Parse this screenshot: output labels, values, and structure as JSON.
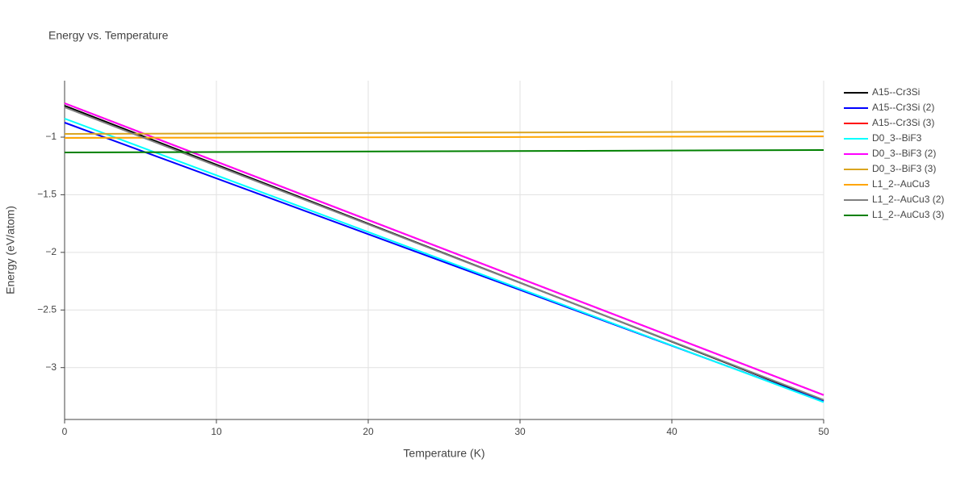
{
  "chart_data": {
    "type": "line",
    "title": "Energy vs. Temperature",
    "x_label": "Temperature (K)",
    "y_label": "Energy (eV/atom)",
    "x": [
      0,
      50
    ],
    "series": [
      {
        "name": "A15--Cr3Si",
        "color": "#000000",
        "values": [
          -0.727,
          -3.287
        ]
      },
      {
        "name": "A15--Cr3Si (2)",
        "color": "#0000ff",
        "values": [
          -0.874,
          -3.294
        ]
      },
      {
        "name": "A15--Cr3Si (3)",
        "color": "#ff0000",
        "values": [
          -0.706,
          -3.238
        ]
      },
      {
        "name": "D0_3--BiF3",
        "color": "#00ffff",
        "values": [
          -0.839,
          -3.3
        ]
      },
      {
        "name": "D0_3--BiF3 (2)",
        "color": "#ff00ff",
        "values": [
          -0.706,
          -3.238
        ]
      },
      {
        "name": "D0_3--BiF3 (3)",
        "color": "#daa520",
        "values": [
          -0.972,
          -0.951
        ]
      },
      {
        "name": "L1_2--AuCu3",
        "color": "#ffa500",
        "values": [
          -1.007,
          -0.993
        ]
      },
      {
        "name": "L1_2--AuCu3 (2)",
        "color": "#808080",
        "values": [
          -0.741,
          -3.28
        ]
      },
      {
        "name": "L1_2--AuCu3 (3)",
        "color": "#008000",
        "values": [
          -1.133,
          -1.112
        ]
      }
    ],
    "xlim": [
      0,
      50
    ],
    "xticks": [
      0,
      10,
      20,
      30,
      40,
      50
    ],
    "ylim": [
      -3.45,
      -0.51
    ],
    "yticks": [
      {
        "value": -3,
        "label": "−3"
      },
      {
        "value": -2.5,
        "label": "−2.5"
      },
      {
        "value": -2,
        "label": "−2"
      },
      {
        "value": -1.5,
        "label": "−1.5"
      },
      {
        "value": -1,
        "label": "−1"
      }
    ],
    "grid": true,
    "legend": "right"
  }
}
